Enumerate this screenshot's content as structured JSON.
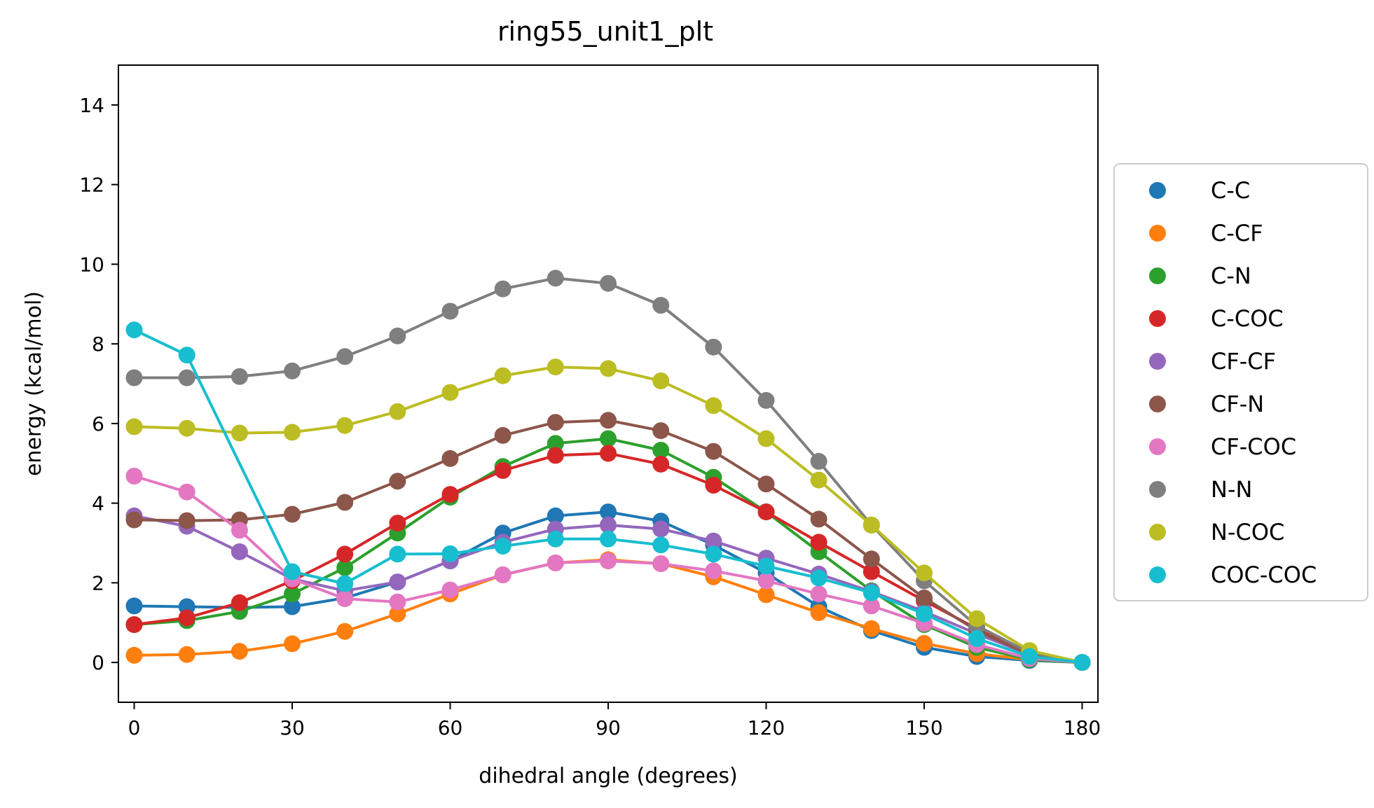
{
  "chart_data": {
    "type": "line",
    "title": "ring55_unit1_plt",
    "xlabel": "dihedral angle (degrees)",
    "ylabel": "energy (kcal/mol)",
    "xlim": [
      -3,
      183
    ],
    "ylim": [
      -1,
      15
    ],
    "xticks": [
      0,
      30,
      60,
      90,
      120,
      150,
      180
    ],
    "yticks": [
      0,
      2,
      4,
      6,
      8,
      10,
      12,
      14
    ],
    "legend_position": "center-right-outside",
    "x": [
      0,
      10,
      20,
      30,
      40,
      50,
      60,
      70,
      80,
      90,
      100,
      110,
      120,
      130,
      140,
      150,
      160,
      170,
      180
    ],
    "series": [
      {
        "name": "C-C",
        "color": "#1f77b4",
        "values": [
          1.42,
          1.4,
          1.38,
          1.4,
          1.62,
          2.02,
          2.55,
          3.25,
          3.68,
          3.78,
          3.55,
          2.95,
          2.25,
          1.4,
          0.8,
          0.38,
          0.15,
          0.05,
          0.0
        ]
      },
      {
        "name": "C-CF",
        "color": "#ff7f0e",
        "values": [
          0.18,
          0.2,
          0.28,
          0.47,
          0.78,
          1.22,
          1.72,
          2.2,
          2.5,
          2.58,
          2.48,
          2.15,
          1.7,
          1.25,
          0.85,
          0.48,
          0.22,
          0.07,
          0.0
        ]
      },
      {
        "name": "C-N",
        "color": "#2ca02c",
        "values": [
          0.95,
          1.05,
          1.28,
          1.72,
          2.38,
          3.25,
          4.15,
          4.92,
          5.5,
          5.62,
          5.33,
          4.65,
          3.78,
          2.78,
          1.8,
          0.95,
          0.38,
          0.07,
          0.0
        ]
      },
      {
        "name": "C-COC",
        "color": "#d62728",
        "values": [
          0.95,
          1.12,
          1.5,
          2.05,
          2.72,
          3.5,
          4.22,
          4.82,
          5.2,
          5.25,
          4.98,
          4.45,
          3.78,
          3.02,
          2.28,
          1.55,
          0.85,
          0.22,
          0.0
        ]
      },
      {
        "name": "CF-CF",
        "color": "#9467bd",
        "values": [
          3.68,
          3.42,
          2.78,
          2.1,
          1.8,
          2.02,
          2.55,
          3.02,
          3.35,
          3.45,
          3.35,
          3.05,
          2.62,
          2.22,
          1.78,
          1.28,
          0.72,
          0.2,
          0.0
        ]
      },
      {
        "name": "CF-N",
        "color": "#8c564b",
        "values": [
          3.58,
          3.56,
          3.58,
          3.72,
          4.02,
          4.55,
          5.12,
          5.7,
          6.03,
          6.08,
          5.82,
          5.3,
          4.48,
          3.6,
          2.6,
          1.62,
          0.8,
          0.2,
          0.0
        ]
      },
      {
        "name": "CF-COC",
        "color": "#e377c2",
        "values": [
          4.68,
          4.28,
          3.32,
          2.1,
          1.6,
          1.52,
          1.82,
          2.2,
          2.5,
          2.55,
          2.48,
          2.3,
          2.05,
          1.72,
          1.42,
          0.98,
          0.45,
          0.1,
          0.0
        ]
      },
      {
        "name": "N-N",
        "color": "#7f7f7f",
        "values": [
          7.15,
          7.15,
          7.18,
          7.32,
          7.68,
          8.2,
          8.82,
          9.38,
          9.65,
          9.52,
          8.97,
          7.92,
          6.58,
          5.05,
          3.45,
          2.05,
          0.92,
          0.25,
          0.0
        ]
      },
      {
        "name": "N-COC",
        "color": "#bcbd22",
        "values": [
          5.92,
          5.88,
          5.76,
          5.78,
          5.95,
          6.3,
          6.78,
          7.2,
          7.42,
          7.38,
          7.07,
          6.45,
          5.62,
          4.58,
          3.45,
          2.25,
          1.1,
          0.3,
          0.0
        ]
      },
      {
        "name": "COC-COC",
        "color": "#17becf",
        "values": [
          8.35,
          7.72,
          null,
          2.28,
          1.98,
          2.72,
          2.73,
          2.92,
          3.1,
          3.1,
          2.95,
          2.72,
          2.42,
          2.12,
          1.75,
          1.22,
          0.6,
          0.15,
          0.0
        ]
      }
    ]
  }
}
